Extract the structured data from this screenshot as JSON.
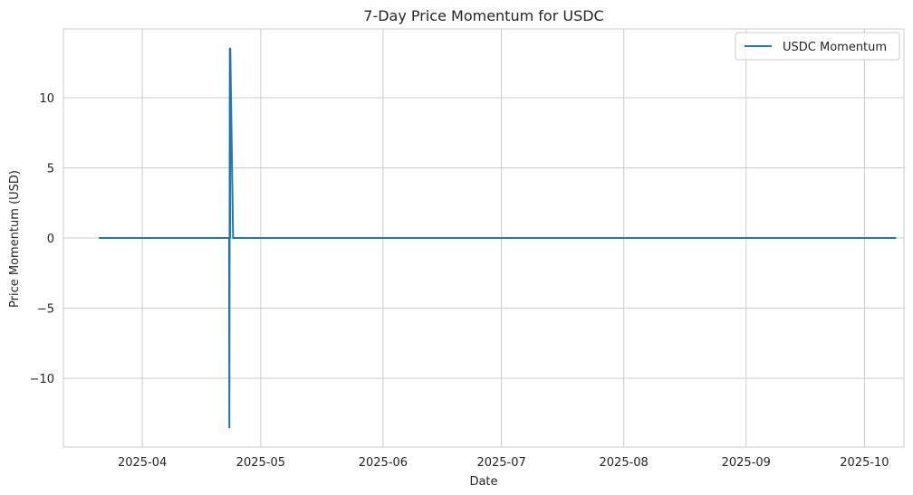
{
  "chart_data": {
    "type": "line",
    "title": "7-Day Price Momentum for USDC",
    "xlabel": "Date",
    "ylabel": "Price Momentum (USD)",
    "x_type": "date",
    "xlim": [
      "2025-03-12",
      "2025-10-11"
    ],
    "ylim": [
      -14.9,
      14.9
    ],
    "x_ticks": [
      "2025-04-01",
      "2025-05-01",
      "2025-06-01",
      "2025-07-01",
      "2025-08-01",
      "2025-09-01",
      "2025-10-01"
    ],
    "x_tick_labels": [
      "2025-04",
      "2025-05",
      "2025-06",
      "2025-07",
      "2025-08",
      "2025-09",
      "2025-10"
    ],
    "y_ticks": [
      -10,
      -5,
      0,
      5,
      10
    ],
    "y_tick_labels": [
      "−10",
      "−5",
      "0",
      "5",
      "10"
    ],
    "grid": true,
    "legend_position": "top-right",
    "series": [
      {
        "name": "USDC Momentum",
        "color": "#1f77b4",
        "x": [
          "2025-03-21",
          "2025-04-22",
          "2025-04-23",
          "2025-04-23",
          "2025-04-23",
          "2025-04-23",
          "2025-04-23",
          "2025-04-23",
          "2025-04-24",
          "2025-10-09"
        ],
        "values": [
          0,
          0,
          0,
          -13.5,
          0,
          13.5,
          0,
          13.5,
          0,
          0
        ]
      }
    ]
  }
}
